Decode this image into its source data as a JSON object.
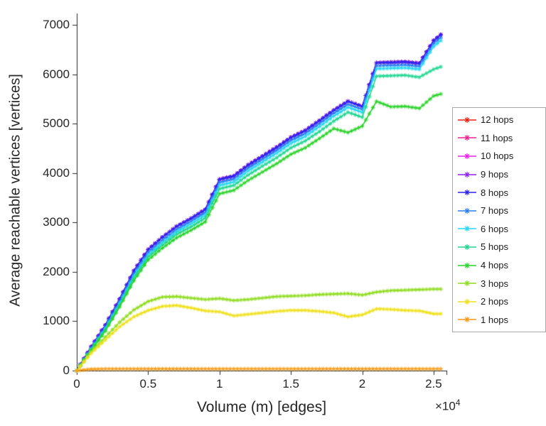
{
  "chart_data": {
    "type": "line",
    "title": "",
    "xlabel": "Volume (m) [edges]",
    "ylabel": "Average reachable vertices [vertices]",
    "x_multiplier": {
      "base": "×10",
      "exp": "4"
    },
    "xlim": [
      0,
      25900
    ],
    "ylim": [
      0,
      7000
    ],
    "grid": false,
    "axis_color": "#262626",
    "marker": "*",
    "legend_position": "outside-right",
    "x_ticks": [
      0,
      5000,
      10000,
      15000,
      20000,
      25000
    ],
    "x_tick_labels": [
      "0",
      "0.5",
      "1",
      "1.5",
      "2",
      "2.5"
    ],
    "y_ticks": [
      0,
      1000,
      2000,
      3000,
      4000,
      5000,
      6000,
      7000
    ],
    "y_tick_labels": [
      "0",
      "1000",
      "2000",
      "3000",
      "4000",
      "5000",
      "6000",
      "7000"
    ],
    "x": [
      0,
      1000,
      2000,
      3000,
      4000,
      5000,
      6000,
      7000,
      8000,
      9000,
      10000,
      11000,
      12000,
      13000,
      14000,
      15000,
      16000,
      17000,
      18000,
      19000,
      20000,
      21000,
      22000,
      23000,
      24000,
      25000,
      25500
    ],
    "series": [
      {
        "name": "12 hops",
        "color": "#f0210f",
        "values": [
          0,
          480,
          920,
          1450,
          2020,
          2450,
          2700,
          2920,
          3080,
          3260,
          3870,
          3940,
          4160,
          4340,
          4520,
          4720,
          4860,
          5060,
          5270,
          5450,
          5350,
          6230,
          6240,
          6250,
          6220,
          6680,
          6800
        ]
      },
      {
        "name": "11 hops",
        "color": "#f0218f",
        "values": [
          0,
          480,
          920,
          1450,
          2020,
          2450,
          2700,
          2920,
          3080,
          3260,
          3870,
          3940,
          4160,
          4340,
          4520,
          4720,
          4860,
          5060,
          5270,
          5450,
          5350,
          6230,
          6240,
          6250,
          6220,
          6680,
          6800
        ]
      },
      {
        "name": "10 hops",
        "color": "#ea21ea",
        "values": [
          0,
          480,
          920,
          1450,
          2020,
          2450,
          2700,
          2920,
          3080,
          3260,
          3870,
          3940,
          4160,
          4340,
          4520,
          4720,
          4860,
          5060,
          5270,
          5450,
          5350,
          6230,
          6240,
          6250,
          6220,
          6680,
          6800
        ]
      },
      {
        "name": "9 hops",
        "color": "#8d21f0",
        "values": [
          0,
          480,
          920,
          1450,
          2020,
          2450,
          2700,
          2920,
          3080,
          3260,
          3870,
          3940,
          4160,
          4340,
          4520,
          4720,
          4860,
          5060,
          5270,
          5450,
          5350,
          6230,
          6240,
          6250,
          6220,
          6680,
          6800
        ]
      },
      {
        "name": "8 hops",
        "color": "#2a21f0",
        "values": [
          0,
          480,
          920,
          1450,
          2020,
          2450,
          2700,
          2920,
          3080,
          3260,
          3870,
          3940,
          4160,
          4340,
          4520,
          4720,
          4860,
          5060,
          5270,
          5450,
          5350,
          6230,
          6240,
          6250,
          6220,
          6680,
          6800
        ]
      },
      {
        "name": "7 hops",
        "color": "#2a7df5",
        "values": [
          0,
          450,
          880,
          1400,
          1960,
          2390,
          2640,
          2860,
          3020,
          3200,
          3810,
          3880,
          4100,
          4280,
          4460,
          4660,
          4800,
          5000,
          5210,
          5390,
          5290,
          6170,
          6180,
          6190,
          6160,
          6620,
          6740
        ]
      },
      {
        "name": "6 hops",
        "color": "#24d7f0",
        "values": [
          0,
          430,
          850,
          1360,
          1910,
          2340,
          2590,
          2810,
          2970,
          3150,
          3750,
          3820,
          4040,
          4220,
          4400,
          4600,
          4740,
          4940,
          5150,
          5330,
          5230,
          6110,
          6120,
          6130,
          6100,
          6560,
          6680
        ]
      },
      {
        "name": "5 hops",
        "color": "#1fd691",
        "values": [
          0,
          420,
          830,
          1330,
          1870,
          2300,
          2540,
          2760,
          2910,
          3090,
          3680,
          3750,
          3960,
          4140,
          4310,
          4510,
          4650,
          4840,
          5050,
          5230,
          5130,
          5960,
          5970,
          5980,
          5940,
          6100,
          6150
        ]
      },
      {
        "name": "4 hops",
        "color": "#2ad22a",
        "values": [
          0,
          410,
          800,
          1290,
          1820,
          2240,
          2480,
          2690,
          2840,
          3010,
          3580,
          3650,
          3850,
          4020,
          4190,
          4380,
          4510,
          4700,
          4900,
          4820,
          4950,
          5450,
          5340,
          5350,
          5310,
          5560,
          5600
        ]
      },
      {
        "name": "3 hops",
        "color": "#8fdc1f",
        "values": [
          0,
          380,
          680,
          980,
          1230,
          1400,
          1490,
          1500,
          1470,
          1440,
          1460,
          1420,
          1440,
          1470,
          1500,
          1510,
          1520,
          1540,
          1550,
          1560,
          1530,
          1590,
          1620,
          1630,
          1640,
          1650,
          1650
        ]
      },
      {
        "name": "2 hops",
        "color": "#efe01a",
        "values": [
          0,
          350,
          620,
          890,
          1090,
          1220,
          1300,
          1320,
          1270,
          1210,
          1190,
          1110,
          1140,
          1170,
          1200,
          1220,
          1220,
          1200,
          1170,
          1090,
          1130,
          1250,
          1240,
          1220,
          1210,
          1150,
          1150
        ]
      },
      {
        "name": "1 hops",
        "color": "#f79910",
        "values": [
          0,
          30,
          35,
          35,
          35,
          35,
          35,
          35,
          35,
          35,
          35,
          35,
          35,
          35,
          35,
          35,
          35,
          35,
          35,
          35,
          35,
          35,
          35,
          35,
          35,
          35,
          35
        ]
      }
    ]
  }
}
